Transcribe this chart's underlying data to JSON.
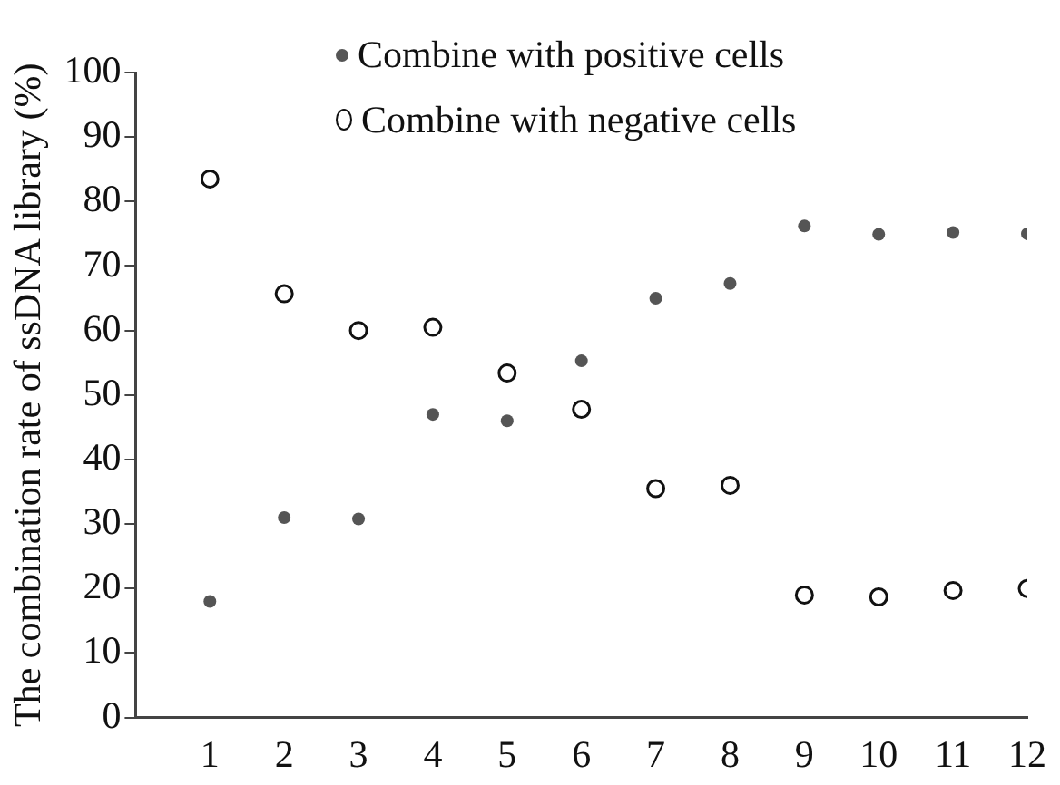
{
  "chart_data": {
    "type": "scatter",
    "ylabel": "The combination rate of ssDNA library (%)",
    "x": [
      1,
      2,
      3,
      4,
      5,
      6,
      7,
      8,
      9,
      10,
      11,
      12
    ],
    "series": [
      {
        "name": "Combine with positive cells",
        "color": "#555555",
        "values": [
          18,
          31,
          30.8,
          47,
          46,
          55.3,
          65,
          67.3,
          76.2,
          74.9,
          75.2,
          75
        ]
      },
      {
        "name": "Combine with negative cells",
        "color": "#111111",
        "values": [
          83.5,
          65.7,
          60,
          60.5,
          53.4,
          47.8,
          35.5,
          36,
          19,
          18.7,
          19.7,
          20
        ]
      }
    ],
    "xlim": [
      0,
      12
    ],
    "xticks": [
      1,
      2,
      3,
      4,
      5,
      6,
      7,
      8,
      9,
      10,
      11,
      12
    ],
    "ylim": [
      0,
      100
    ],
    "yticks": [
      0,
      10,
      20,
      30,
      40,
      50,
      60,
      70,
      80,
      90,
      100
    ],
    "grid": false,
    "legend": "top",
    "marker": "circle"
  }
}
